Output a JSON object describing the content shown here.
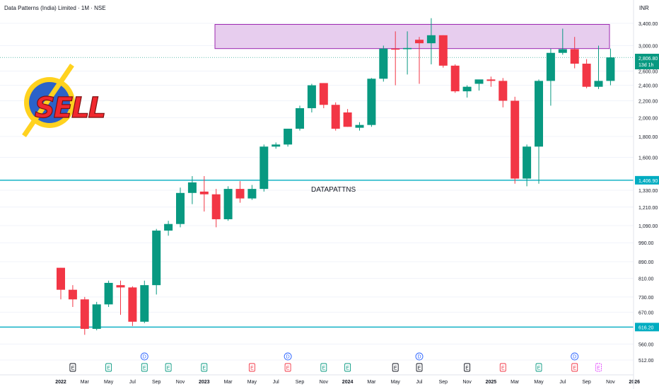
{
  "header": {
    "title": "Data Patterns (India) Limited · 1M · NSE",
    "currency": "INR"
  },
  "symbol_watermark": "DATAPATTNS",
  "sell_logo": {
    "text": "SELL",
    "circle_color": "#2b62c9",
    "ring_color": "#ffd21f",
    "text_color": "#f0282e"
  },
  "price_badge": {
    "value": "2,806.80",
    "countdown": "13d 1h"
  },
  "levels": [
    {
      "value": 1406.9,
      "label": "1,406.90"
    },
    {
      "value": 616.2,
      "label": "616.20"
    }
  ],
  "colors": {
    "up": "#089981",
    "down": "#f23645",
    "level_line": "#00acc1",
    "zone_fill": "#e7cdee",
    "zone_border": "#9c27b0"
  },
  "chart_data": {
    "type": "candlestick",
    "title": "Data Patterns (India) Limited · 1M · NSE",
    "scale": "log",
    "ylim": [
      500,
      3700
    ],
    "y_ticks": [
      {
        "value": 3400,
        "label": "3,400.00"
      },
      {
        "value": 3000,
        "label": "3,000.00"
      },
      {
        "value": 2600,
        "label": "2,600.00"
      },
      {
        "value": 2400,
        "label": "2,400.00"
      },
      {
        "value": 2200,
        "label": "2,200.00"
      },
      {
        "value": 2000,
        "label": "2,000.00"
      },
      {
        "value": 1800,
        "label": "1,800.00"
      },
      {
        "value": 1600,
        "label": "1,600.00"
      },
      {
        "value": 1330,
        "label": "1,330.00"
      },
      {
        "value": 1210,
        "label": "1,210.00"
      },
      {
        "value": 1090,
        "label": "1,090.00"
      },
      {
        "value": 990,
        "label": "990.00"
      },
      {
        "value": 890,
        "label": "890.00"
      },
      {
        "value": 810,
        "label": "810.00"
      },
      {
        "value": 730,
        "label": "730.00"
      },
      {
        "value": 670,
        "label": "670.00"
      },
      {
        "value": 560,
        "label": "560.00"
      },
      {
        "value": 512,
        "label": "512.00"
      }
    ],
    "x_ticks": [
      {
        "index": 0,
        "label": "2022"
      },
      {
        "index": 2,
        "label": "Mar"
      },
      {
        "index": 4,
        "label": "May"
      },
      {
        "index": 6,
        "label": "Jul"
      },
      {
        "index": 8,
        "label": "Sep"
      },
      {
        "index": 10,
        "label": "Nov"
      },
      {
        "index": 12,
        "label": "2023"
      },
      {
        "index": 14,
        "label": "Mar"
      },
      {
        "index": 16,
        "label": "May"
      },
      {
        "index": 18,
        "label": "Jul"
      },
      {
        "index": 20,
        "label": "Sep"
      },
      {
        "index": 22,
        "label": "Nov"
      },
      {
        "index": 24,
        "label": "2024"
      },
      {
        "index": 26,
        "label": "Mar"
      },
      {
        "index": 28,
        "label": "May"
      },
      {
        "index": 30,
        "label": "Jul"
      },
      {
        "index": 32,
        "label": "Sep"
      },
      {
        "index": 34,
        "label": "Nov"
      },
      {
        "index": 36,
        "label": "2025"
      },
      {
        "index": 38,
        "label": "Mar"
      },
      {
        "index": 40,
        "label": "May"
      },
      {
        "index": 42,
        "label": "Jul"
      },
      {
        "index": 44,
        "label": "Sep"
      },
      {
        "index": 46,
        "label": "Nov"
      },
      {
        "index": 48,
        "label": "2026"
      }
    ],
    "earnings_markers": [
      {
        "index": 1,
        "text": "E",
        "style": "neutral"
      },
      {
        "index": 4,
        "text": "E",
        "style": "up"
      },
      {
        "index": 7,
        "text": "E",
        "style": "up"
      },
      {
        "index": 9,
        "text": "E",
        "style": "up"
      },
      {
        "index": 12,
        "text": "E",
        "style": "up"
      },
      {
        "index": 16,
        "text": "E",
        "style": "down"
      },
      {
        "index": 19,
        "text": "E",
        "style": "down"
      },
      {
        "index": 22,
        "text": "E",
        "style": "up"
      },
      {
        "index": 24,
        "text": "E",
        "style": "up"
      },
      {
        "index": 28,
        "text": "E",
        "style": "neutral"
      },
      {
        "index": 30,
        "text": "E",
        "style": "neutral"
      },
      {
        "index": 34,
        "text": "E",
        "style": "neutral"
      },
      {
        "index": 37,
        "text": "E",
        "style": "down"
      },
      {
        "index": 40,
        "text": "E",
        "style": "up"
      },
      {
        "index": 43,
        "text": "E",
        "style": "down"
      },
      {
        "index": 45,
        "text": "E",
        "style": "future"
      }
    ],
    "dividend_markers": [
      {
        "index": 7,
        "text": "D"
      },
      {
        "index": 19,
        "text": "D"
      },
      {
        "index": 30,
        "text": "D"
      },
      {
        "index": 43,
        "text": "D"
      }
    ],
    "resistance_zone": {
      "low": 2950,
      "high": 3380
    },
    "candles": [
      {
        "date": "2022-01",
        "o": 860,
        "h": 860,
        "l": 720,
        "c": 760
      },
      {
        "date": "2022-02",
        "o": 760,
        "h": 780,
        "l": 690,
        "c": 720
      },
      {
        "date": "2022-03",
        "o": 720,
        "h": 730,
        "l": 590,
        "c": 610
      },
      {
        "date": "2022-04",
        "o": 610,
        "h": 710,
        "l": 605,
        "c": 700
      },
      {
        "date": "2022-05",
        "o": 700,
        "h": 800,
        "l": 690,
        "c": 790
      },
      {
        "date": "2022-06",
        "o": 780,
        "h": 800,
        "l": 660,
        "c": 770
      },
      {
        "date": "2022-07",
        "o": 770,
        "h": 775,
        "l": 620,
        "c": 635
      },
      {
        "date": "2022-08",
        "o": 635,
        "h": 800,
        "l": 630,
        "c": 780
      },
      {
        "date": "2022-09",
        "o": 780,
        "h": 1070,
        "l": 740,
        "c": 1060
      },
      {
        "date": "2022-10",
        "o": 1060,
        "h": 1120,
        "l": 1030,
        "c": 1100
      },
      {
        "date": "2022-11",
        "o": 1100,
        "h": 1350,
        "l": 1080,
        "c": 1310
      },
      {
        "date": "2022-12",
        "o": 1310,
        "h": 1440,
        "l": 1230,
        "c": 1390
      },
      {
        "date": "2023-01",
        "o": 1320,
        "h": 1440,
        "l": 1180,
        "c": 1300
      },
      {
        "date": "2023-02",
        "o": 1300,
        "h": 1340,
        "l": 1080,
        "c": 1130
      },
      {
        "date": "2023-03",
        "o": 1130,
        "h": 1360,
        "l": 1120,
        "c": 1340
      },
      {
        "date": "2023-04",
        "o": 1340,
        "h": 1400,
        "l": 1240,
        "c": 1270
      },
      {
        "date": "2023-05",
        "o": 1270,
        "h": 1370,
        "l": 1260,
        "c": 1340
      },
      {
        "date": "2023-06",
        "o": 1340,
        "h": 1720,
        "l": 1320,
        "c": 1700
      },
      {
        "date": "2023-07",
        "o": 1700,
        "h": 1740,
        "l": 1680,
        "c": 1720
      },
      {
        "date": "2023-08",
        "o": 1720,
        "h": 1880,
        "l": 1700,
        "c": 1880
      },
      {
        "date": "2023-09",
        "o": 1880,
        "h": 2140,
        "l": 1860,
        "c": 2110
      },
      {
        "date": "2023-10",
        "o": 2110,
        "h": 2420,
        "l": 2060,
        "c": 2400
      },
      {
        "date": "2023-11",
        "o": 2430,
        "h": 2430,
        "l": 2110,
        "c": 2150
      },
      {
        "date": "2023-12",
        "o": 2150,
        "h": 2180,
        "l": 1860,
        "c": 1880
      },
      {
        "date": "2024-01",
        "o": 2060,
        "h": 2100,
        "l": 1900,
        "c": 1900
      },
      {
        "date": "2024-02",
        "o": 1890,
        "h": 1950,
        "l": 1860,
        "c": 1920
      },
      {
        "date": "2024-03",
        "o": 1920,
        "h": 2500,
        "l": 1900,
        "c": 2490
      },
      {
        "date": "2024-04",
        "o": 2490,
        "h": 3000,
        "l": 2450,
        "c": 2950
      },
      {
        "date": "2024-05",
        "o": 2950,
        "h": 3250,
        "l": 2400,
        "c": 2940
      },
      {
        "date": "2024-06",
        "o": 2940,
        "h": 3250,
        "l": 2550,
        "c": 2960
      },
      {
        "date": "2024-07",
        "o": 3100,
        "h": 3150,
        "l": 2420,
        "c": 3040
      },
      {
        "date": "2024-08",
        "o": 3040,
        "h": 3500,
        "l": 2700,
        "c": 3180
      },
      {
        "date": "2024-09",
        "o": 3180,
        "h": 3180,
        "l": 2650,
        "c": 2680
      },
      {
        "date": "2024-10",
        "o": 2680,
        "h": 2700,
        "l": 2300,
        "c": 2320
      },
      {
        "date": "2024-11",
        "o": 2320,
        "h": 2400,
        "l": 2240,
        "c": 2380
      },
      {
        "date": "2024-12",
        "o": 2420,
        "h": 2460,
        "l": 2330,
        "c": 2480
      },
      {
        "date": "2025-01",
        "o": 2480,
        "h": 2520,
        "l": 2380,
        "c": 2460
      },
      {
        "date": "2025-02",
        "o": 2460,
        "h": 2500,
        "l": 2120,
        "c": 2200
      },
      {
        "date": "2025-03",
        "o": 2200,
        "h": 2250,
        "l": 1380,
        "c": 1420
      },
      {
        "date": "2025-04",
        "o": 1420,
        "h": 1720,
        "l": 1360,
        "c": 1700
      },
      {
        "date": "2025-05",
        "o": 1700,
        "h": 2480,
        "l": 1380,
        "c": 2460
      },
      {
        "date": "2025-06",
        "o": 2460,
        "h": 2950,
        "l": 2140,
        "c": 2880
      },
      {
        "date": "2025-07",
        "o": 2880,
        "h": 3300,
        "l": 2850,
        "c": 2940
      },
      {
        "date": "2025-08",
        "o": 2940,
        "h": 3150,
        "l": 2640,
        "c": 2710
      },
      {
        "date": "2025-09",
        "o": 2710,
        "h": 2780,
        "l": 2360,
        "c": 2380
      },
      {
        "date": "2025-10",
        "o": 2380,
        "h": 3000,
        "l": 2350,
        "c": 2460
      },
      {
        "date": "2025-11",
        "o": 2460,
        "h": 2950,
        "l": 2400,
        "c": 2806.8
      }
    ]
  }
}
